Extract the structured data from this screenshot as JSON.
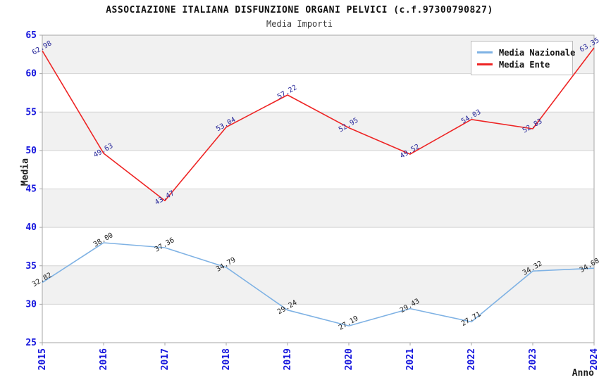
{
  "chart_data": {
    "type": "line",
    "title": "ASSOCIAZIONE ITALIANA DISFUNZIONE ORGANI PELVICI (c.f.97300790827)",
    "subtitle": "Media Importi",
    "x": [
      "2015",
      "2016",
      "2017",
      "2018",
      "2019",
      "2020",
      "2021",
      "2022",
      "2023",
      "2024"
    ],
    "series": [
      {
        "name": "Media Nazionale",
        "color": "#7fb2e4",
        "label_color": "#1c1c1c",
        "values": [
          32.82,
          38.0,
          37.36,
          34.79,
          29.24,
          27.19,
          29.43,
          27.71,
          34.32,
          34.68
        ]
      },
      {
        "name": "Media Ente",
        "color": "#ee2424",
        "label_color": "#28289a",
        "values": [
          62.98,
          49.63,
          43.47,
          53.04,
          57.22,
          52.95,
          49.52,
          54.03,
          52.83,
          63.35
        ]
      }
    ],
    "xlabel": "Anno",
    "ylabel": "Media",
    "ylim": [
      25,
      65
    ],
    "ytick_step": 5,
    "yticks": [
      25,
      30,
      35,
      40,
      45,
      50,
      55,
      60,
      65
    ],
    "grid": "horizontal",
    "legend_position": "top-right",
    "band_color": "#f1f1f1",
    "gridline_color": "#d4d4d4",
    "border_color": "#a6a6a6",
    "tick_label_color": "#1515dd",
    "value_label_format": "0.00"
  }
}
